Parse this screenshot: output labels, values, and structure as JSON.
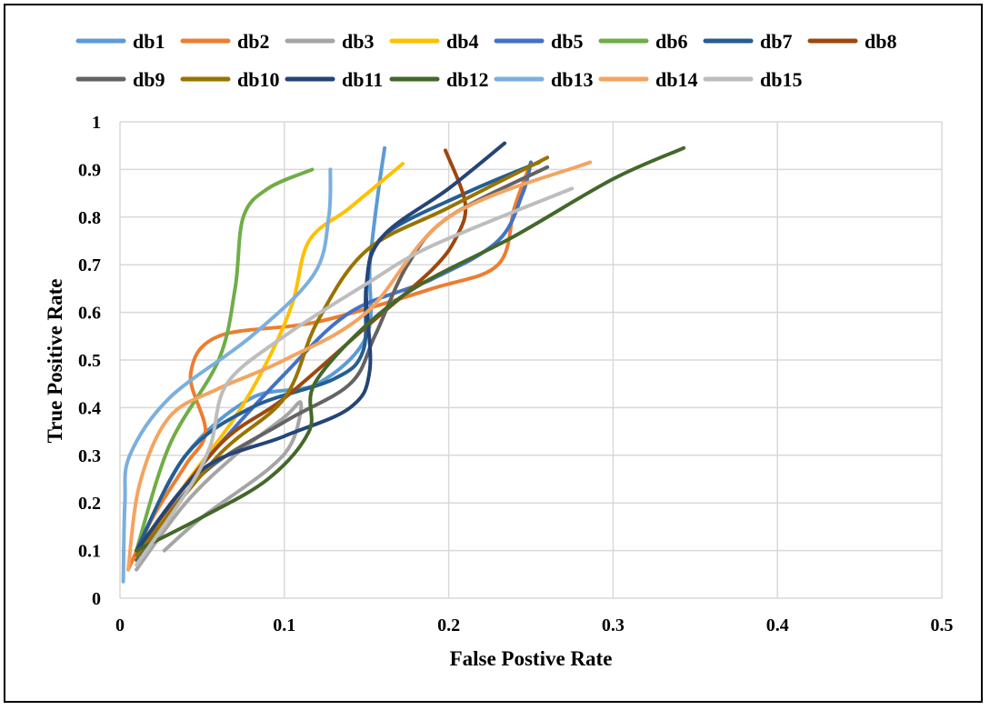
{
  "chart_data": {
    "type": "line",
    "title": "",
    "xlabel": "False Postive Rate",
    "ylabel": "True Positive Rate",
    "xlim": [
      0,
      0.5
    ],
    "ylim": [
      0,
      1
    ],
    "x_ticks": [
      "0",
      "0.1",
      "0.2",
      "0.3",
      "0.4",
      "0.5"
    ],
    "y_ticks": [
      "0",
      "0.1",
      "0.2",
      "0.3",
      "0.4",
      "0.5",
      "0.6",
      "0.7",
      "0.8",
      "0.9",
      "1"
    ],
    "grid": true,
    "legend": "top",
    "series": [
      {
        "name": "db1",
        "color": "#5B9BD5",
        "points": [
          [
            0.01,
            0.1
          ],
          [
            0.04,
            0.3
          ],
          [
            0.08,
            0.42
          ],
          [
            0.12,
            0.45
          ],
          [
            0.15,
            0.55
          ],
          [
            0.152,
            0.7
          ],
          [
            0.157,
            0.85
          ],
          [
            0.161,
            0.945
          ]
        ]
      },
      {
        "name": "db2",
        "color": "#ED7D31",
        "points": [
          [
            0.005,
            0.06
          ],
          [
            0.02,
            0.17
          ],
          [
            0.04,
            0.28
          ],
          [
            0.052,
            0.35
          ],
          [
            0.043,
            0.47
          ],
          [
            0.06,
            0.55
          ],
          [
            0.12,
            0.58
          ],
          [
            0.19,
            0.65
          ],
          [
            0.23,
            0.7
          ],
          [
            0.24,
            0.82
          ],
          [
            0.25,
            0.915
          ]
        ]
      },
      {
        "name": "db3",
        "color": "#A5A5A5",
        "points": [
          [
            0.01,
            0.06
          ],
          [
            0.04,
            0.2
          ],
          [
            0.07,
            0.3
          ],
          [
            0.1,
            0.38
          ],
          [
            0.11,
            0.41
          ],
          [
            0.105,
            0.33
          ],
          [
            0.09,
            0.27
          ],
          [
            0.05,
            0.17
          ],
          [
            0.027,
            0.1
          ]
        ]
      },
      {
        "name": "db4",
        "color": "#FFC000",
        "points": [
          [
            0.01,
            0.09
          ],
          [
            0.04,
            0.24
          ],
          [
            0.07,
            0.38
          ],
          [
            0.09,
            0.5
          ],
          [
            0.105,
            0.62
          ],
          [
            0.115,
            0.75
          ],
          [
            0.14,
            0.82
          ],
          [
            0.172,
            0.912
          ]
        ]
      },
      {
        "name": "db5",
        "color": "#4472C4",
        "points": [
          [
            0.01,
            0.1
          ],
          [
            0.05,
            0.28
          ],
          [
            0.1,
            0.47
          ],
          [
            0.14,
            0.6
          ],
          [
            0.19,
            0.67
          ],
          [
            0.23,
            0.75
          ],
          [
            0.245,
            0.85
          ],
          [
            0.25,
            0.915
          ]
        ]
      },
      {
        "name": "db6",
        "color": "#70AD47",
        "points": [
          [
            0.01,
            0.1
          ],
          [
            0.03,
            0.32
          ],
          [
            0.06,
            0.5
          ],
          [
            0.07,
            0.65
          ],
          [
            0.075,
            0.8
          ],
          [
            0.09,
            0.86
          ],
          [
            0.117,
            0.9
          ]
        ]
      },
      {
        "name": "db7",
        "color": "#255E91",
        "points": [
          [
            0.01,
            0.1
          ],
          [
            0.04,
            0.3
          ],
          [
            0.08,
            0.4
          ],
          [
            0.13,
            0.46
          ],
          [
            0.148,
            0.52
          ],
          [
            0.15,
            0.66
          ],
          [
            0.16,
            0.76
          ],
          [
            0.21,
            0.85
          ],
          [
            0.255,
            0.915
          ]
        ]
      },
      {
        "name": "db8",
        "color": "#9E480E",
        "points": [
          [
            0.01,
            0.1
          ],
          [
            0.06,
            0.32
          ],
          [
            0.1,
            0.42
          ],
          [
            0.15,
            0.57
          ],
          [
            0.19,
            0.69
          ],
          [
            0.205,
            0.76
          ],
          [
            0.21,
            0.83
          ],
          [
            0.198,
            0.94
          ]
        ]
      },
      {
        "name": "db9",
        "color": "#636363",
        "points": [
          [
            0.01,
            0.08
          ],
          [
            0.05,
            0.26
          ],
          [
            0.1,
            0.37
          ],
          [
            0.14,
            0.45
          ],
          [
            0.155,
            0.55
          ],
          [
            0.175,
            0.7
          ],
          [
            0.2,
            0.8
          ],
          [
            0.26,
            0.905
          ]
        ]
      },
      {
        "name": "db10",
        "color": "#997300",
        "points": [
          [
            0.01,
            0.09
          ],
          [
            0.06,
            0.3
          ],
          [
            0.1,
            0.42
          ],
          [
            0.12,
            0.58
          ],
          [
            0.15,
            0.73
          ],
          [
            0.2,
            0.82
          ],
          [
            0.26,
            0.925
          ]
        ]
      },
      {
        "name": "db11",
        "color": "#264478",
        "points": [
          [
            0.01,
            0.1
          ],
          [
            0.05,
            0.27
          ],
          [
            0.1,
            0.34
          ],
          [
            0.14,
            0.4
          ],
          [
            0.152,
            0.48
          ],
          [
            0.15,
            0.66
          ],
          [
            0.16,
            0.76
          ],
          [
            0.2,
            0.86
          ],
          [
            0.234,
            0.955
          ]
        ]
      },
      {
        "name": "db12",
        "color": "#43682B",
        "points": [
          [
            0.01,
            0.1
          ],
          [
            0.05,
            0.17
          ],
          [
            0.09,
            0.25
          ],
          [
            0.115,
            0.35
          ],
          [
            0.12,
            0.46
          ],
          [
            0.17,
            0.63
          ],
          [
            0.24,
            0.76
          ],
          [
            0.3,
            0.88
          ],
          [
            0.343,
            0.945
          ]
        ]
      },
      {
        "name": "db13",
        "color": "#7CAFDD",
        "points": [
          [
            0.002,
            0.035
          ],
          [
            0.003,
            0.2
          ],
          [
            0.006,
            0.3
          ],
          [
            0.03,
            0.42
          ],
          [
            0.08,
            0.55
          ],
          [
            0.118,
            0.68
          ],
          [
            0.127,
            0.8
          ],
          [
            0.128,
            0.9
          ]
        ]
      },
      {
        "name": "db14",
        "color": "#F4A460",
        "points": [
          [
            0.005,
            0.06
          ],
          [
            0.012,
            0.24
          ],
          [
            0.03,
            0.38
          ],
          [
            0.06,
            0.44
          ],
          [
            0.1,
            0.5
          ],
          [
            0.15,
            0.6
          ],
          [
            0.2,
            0.8
          ],
          [
            0.286,
            0.915
          ]
        ]
      },
      {
        "name": "db15",
        "color": "#BDBDBD",
        "points": [
          [
            0.01,
            0.07
          ],
          [
            0.04,
            0.22
          ],
          [
            0.055,
            0.32
          ],
          [
            0.065,
            0.45
          ],
          [
            0.1,
            0.55
          ],
          [
            0.15,
            0.66
          ],
          [
            0.19,
            0.74
          ],
          [
            0.275,
            0.86
          ]
        ]
      }
    ]
  }
}
